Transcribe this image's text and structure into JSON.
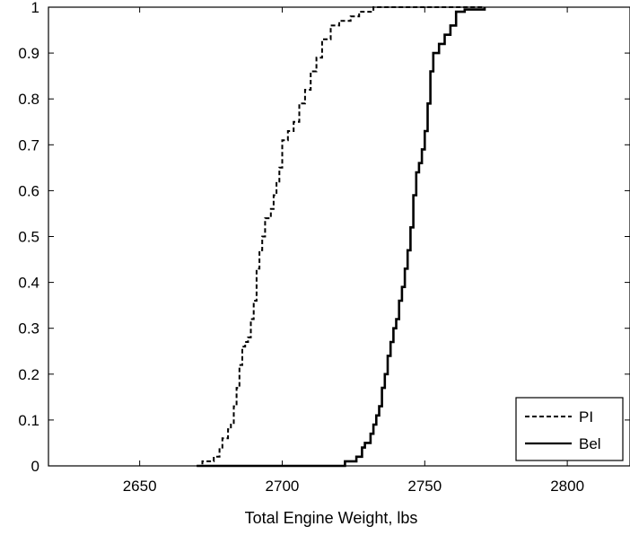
{
  "chart_data": {
    "type": "line",
    "title": "",
    "xlabel": "Total Engine Weight, lbs",
    "ylabel": "",
    "xlim": [
      2618,
      2822
    ],
    "ylim": [
      0,
      1
    ],
    "x_ticks": [
      2650,
      2700,
      2750,
      2800
    ],
    "y_ticks": [
      0,
      0.1,
      0.2,
      0.3,
      0.4,
      0.5,
      0.6,
      0.7,
      0.8,
      0.9,
      1
    ],
    "x_tick_labels": [
      "2650",
      "2700",
      "2750",
      "2800"
    ],
    "y_tick_labels": [
      "0",
      "0.1",
      "0.2",
      "0.3",
      "0.4",
      "0.5",
      "0.6",
      "0.7",
      "0.8",
      "0.9",
      "1"
    ],
    "grid": false,
    "legend_position": "bottom-right",
    "series": [
      {
        "name": "PI",
        "line_style": "dashed",
        "color": "#000000",
        "points": [
          [
            2670,
            0
          ],
          [
            2672,
            0.01
          ],
          [
            2676,
            0.02
          ],
          [
            2678,
            0.04
          ],
          [
            2679,
            0.06
          ],
          [
            2681,
            0.08
          ],
          [
            2682,
            0.09
          ],
          [
            2683,
            0.13
          ],
          [
            2684,
            0.17
          ],
          [
            2685,
            0.22
          ],
          [
            2686,
            0.26
          ],
          [
            2687,
            0.27
          ],
          [
            2688,
            0.28
          ],
          [
            2689,
            0.32
          ],
          [
            2690,
            0.36
          ],
          [
            2691,
            0.43
          ],
          [
            2692,
            0.47
          ],
          [
            2693,
            0.5
          ],
          [
            2694,
            0.54
          ],
          [
            2696,
            0.56
          ],
          [
            2697,
            0.59
          ],
          [
            2698,
            0.62
          ],
          [
            2699,
            0.65
          ],
          [
            2700,
            0.71
          ],
          [
            2702,
            0.73
          ],
          [
            2704,
            0.75
          ],
          [
            2706,
            0.79
          ],
          [
            2708,
            0.82
          ],
          [
            2710,
            0.86
          ],
          [
            2712,
            0.89
          ],
          [
            2714,
            0.93
          ],
          [
            2717,
            0.96
          ],
          [
            2720,
            0.97
          ],
          [
            2724,
            0.98
          ],
          [
            2727,
            0.99
          ],
          [
            2732,
            1.0
          ],
          [
            2771,
            1.0
          ]
        ]
      },
      {
        "name": "Bel",
        "line_style": "solid",
        "color": "#000000",
        "points": [
          [
            2670,
            0
          ],
          [
            2721,
            0
          ],
          [
            2722,
            0.01
          ],
          [
            2726,
            0.02
          ],
          [
            2728,
            0.04
          ],
          [
            2729,
            0.05
          ],
          [
            2731,
            0.07
          ],
          [
            2732,
            0.09
          ],
          [
            2733,
            0.11
          ],
          [
            2734,
            0.13
          ],
          [
            2735,
            0.17
          ],
          [
            2736,
            0.2
          ],
          [
            2737,
            0.24
          ],
          [
            2738,
            0.27
          ],
          [
            2739,
            0.3
          ],
          [
            2740,
            0.32
          ],
          [
            2741,
            0.36
          ],
          [
            2742,
            0.39
          ],
          [
            2743,
            0.43
          ],
          [
            2744,
            0.47
          ],
          [
            2745,
            0.52
          ],
          [
            2746,
            0.59
          ],
          [
            2747,
            0.64
          ],
          [
            2748,
            0.66
          ],
          [
            2749,
            0.69
          ],
          [
            2750,
            0.73
          ],
          [
            2751,
            0.79
          ],
          [
            2752,
            0.86
          ],
          [
            2753,
            0.9
          ],
          [
            2755,
            0.92
          ],
          [
            2757,
            0.94
          ],
          [
            2759,
            0.96
          ],
          [
            2761,
            0.99
          ],
          [
            2764,
            0.995
          ],
          [
            2771,
            1.0
          ]
        ]
      }
    ]
  }
}
